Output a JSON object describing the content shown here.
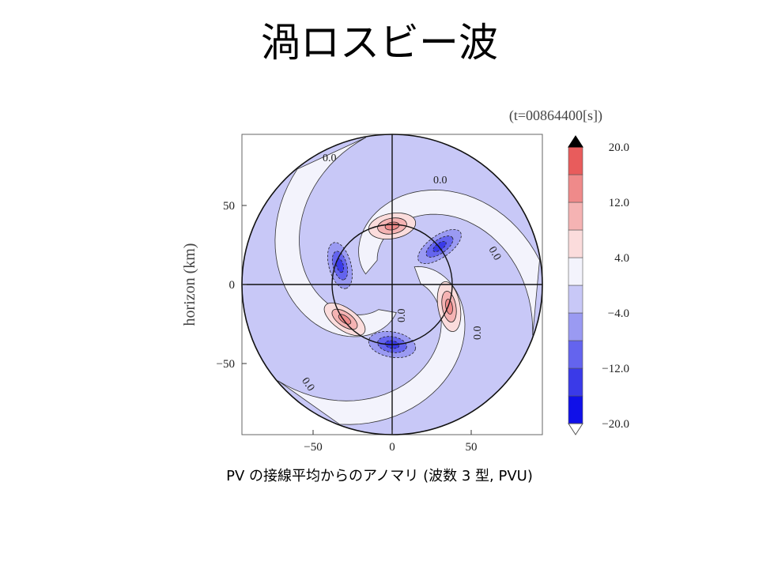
{
  "slide": {
    "title": "渦ロスビー波",
    "caption": "PV の接線平均からのアノマリ (波数 3 型, PVU)"
  },
  "chart_data": {
    "type": "contour",
    "time_label": "(t=00864400[s])",
    "ylabel": "horizon (km)",
    "xlabel": "",
    "xlim": [
      -95,
      95
    ],
    "ylim": [
      -95,
      95
    ],
    "x_ticks": [
      "−50",
      "0",
      "50"
    ],
    "y_ticks": [
      "50",
      "0",
      "−50"
    ],
    "x_tick_values": [
      -50,
      0,
      50
    ],
    "y_tick_values": [
      50,
      0,
      -50
    ],
    "domain_radius_km": 95,
    "inner_circle_radius_km": 38,
    "wavenumber": 3,
    "contour_labels": [
      "0.0",
      "0.0",
      "0.0",
      "0.0",
      "0.0",
      "0.0"
    ],
    "colorbar": {
      "labels": [
        "20.0",
        "12.0",
        "4.0",
        "−4.0",
        "−12.0",
        "−20.0"
      ],
      "levels": [
        -20,
        -16,
        -12,
        -8,
        -4,
        0,
        4,
        8,
        12,
        16,
        20
      ],
      "colors": [
        "#1010e8",
        "#3a3ae8",
        "#6464ee",
        "#9a9af2",
        "#c8c8f7",
        "#f3f3fc",
        "#fbdcdc",
        "#f5b3b3",
        "#ef8a8a",
        "#e85c5c",
        "#e03030"
      ]
    },
    "colors": {
      "negative_band": "#c8c8f7",
      "near_zero": "#f3f3fc",
      "positive_band": "#fbdcdc"
    }
  }
}
